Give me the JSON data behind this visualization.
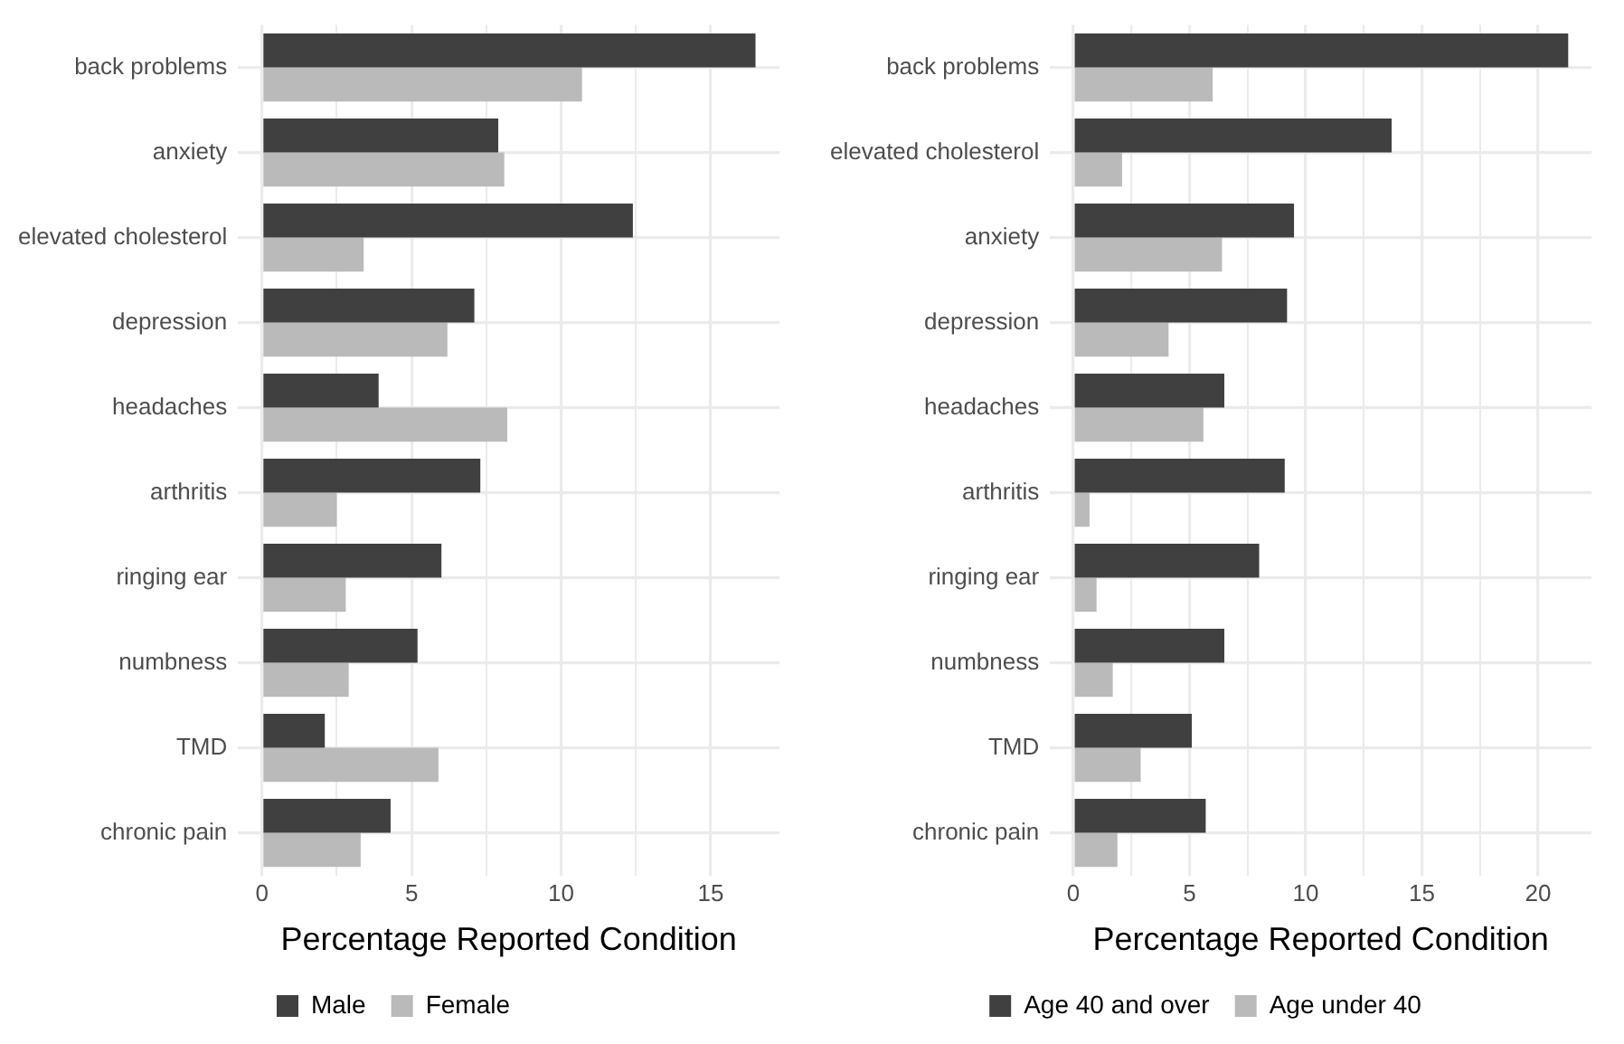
{
  "chart_data": [
    {
      "type": "bar",
      "orientation": "horizontal",
      "categories": [
        "back problems",
        "anxiety",
        "elevated cholesterol",
        "depression",
        "headaches",
        "arthritis",
        "ringing ear",
        "numbness",
        "TMD",
        "chronic pain"
      ],
      "series": [
        {
          "name": "Male",
          "color": "#404040",
          "values": [
            16.5,
            7.9,
            12.4,
            7.1,
            3.9,
            7.3,
            6.0,
            5.2,
            2.1,
            4.3
          ]
        },
        {
          "name": "Female",
          "color": "#bababa",
          "values": [
            10.7,
            8.1,
            3.4,
            6.2,
            8.2,
            2.5,
            2.8,
            2.9,
            5.9,
            3.3
          ]
        }
      ],
      "xlim": [
        -0.8,
        17.3
      ],
      "xticks": [
        0,
        {
          "value": 2.5,
          "label": null
        },
        5,
        {
          "value": 7.5,
          "label": null
        },
        10,
        {
          "value": 12.5,
          "label": null
        },
        15
      ],
      "xlabel": "Percentage Reported Condition",
      "grid": true,
      "legend": "bottom"
    },
    {
      "type": "bar",
      "orientation": "horizontal",
      "categories": [
        "back problems",
        "elevated cholesterol",
        "anxiety",
        "depression",
        "headaches",
        "arthritis",
        "ringing ear",
        "numbness",
        "TMD",
        "chronic pain"
      ],
      "series": [
        {
          "name": "Age 40 and over",
          "color": "#404040",
          "values": [
            21.3,
            13.7,
            9.5,
            9.2,
            6.5,
            9.1,
            8.0,
            6.5,
            5.1,
            5.7
          ]
        },
        {
          "name": "Age under 40",
          "color": "#bababa",
          "values": [
            6.0,
            2.1,
            6.4,
            4.1,
            5.6,
            0.7,
            1.0,
            1.7,
            2.9,
            1.9
          ]
        }
      ],
      "xlim": [
        -1,
        22.3
      ],
      "xticks": [
        0,
        {
          "value": 2.5,
          "label": null
        },
        5,
        {
          "value": 7.5,
          "label": null
        },
        10,
        {
          "value": 12.5,
          "label": null
        },
        15,
        {
          "value": 17.5,
          "label": null
        },
        20
      ],
      "xlabel": "Percentage Reported Condition",
      "grid": true,
      "legend": "bottom"
    }
  ]
}
